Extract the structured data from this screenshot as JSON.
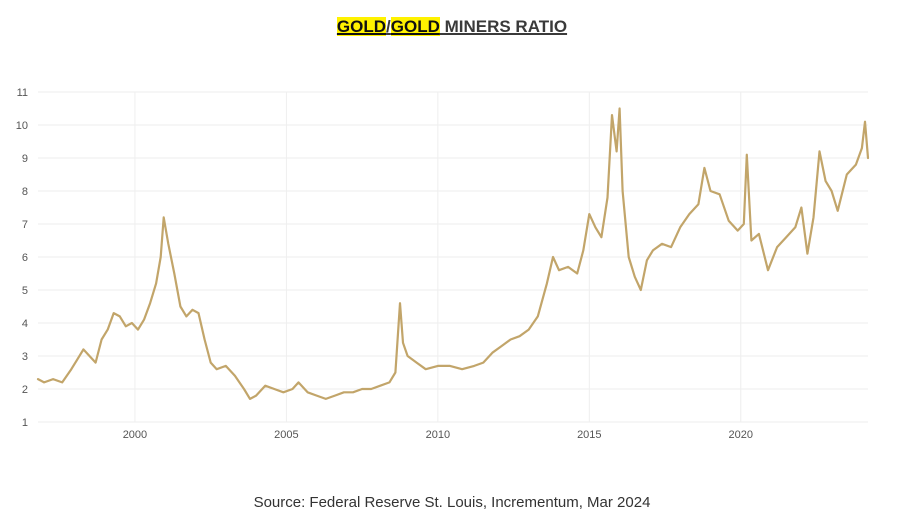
{
  "title": {
    "part1": "GOLD",
    "sep": "/",
    "part2": "GOLD",
    "rest": " MINERS RATIO"
  },
  "source": "Source: Federal Reserve St. Louis, Incrementum, Mar 2024",
  "colors": {
    "line": "#c2a56a",
    "highlight": "#fff200",
    "grid": "#eeeeee"
  },
  "chart_data": {
    "type": "line",
    "title": "GOLD/GOLD MINERS RATIO",
    "xlabel": "",
    "ylabel": "",
    "xlim": [
      1996.8,
      2024.2
    ],
    "ylim": [
      1,
      11
    ],
    "x_ticks": [
      2000,
      2005,
      2010,
      2015,
      2020
    ],
    "y_ticks": [
      1,
      2,
      3,
      4,
      5,
      6,
      7,
      8,
      9,
      10,
      11
    ],
    "grid": true,
    "legend": "none",
    "series": [
      {
        "x": [
          1996.8,
          1997.0,
          1997.3,
          1997.6,
          1997.9,
          1998.1,
          1998.3,
          1998.5,
          1998.7,
          1998.9,
          1999.1,
          1999.3,
          1999.5,
          1999.7,
          1999.9,
          2000.1,
          2000.3,
          2000.5,
          2000.7,
          2000.85,
          2000.95,
          2001.1,
          2001.3,
          2001.5,
          2001.7,
          2001.9,
          2002.1,
          2002.3,
          2002.5,
          2002.7,
          2003.0,
          2003.3,
          2003.6,
          2003.8,
          2004.0,
          2004.3,
          2004.6,
          2004.9,
          2005.2,
          2005.4,
          2005.7,
          2006.0,
          2006.3,
          2006.6,
          2006.9,
          2007.2,
          2007.5,
          2007.8,
          2008.1,
          2008.4,
          2008.6,
          2008.75,
          2008.85,
          2009.0,
          2009.3,
          2009.6,
          2010.0,
          2010.4,
          2010.8,
          2011.2,
          2011.5,
          2011.8,
          2012.1,
          2012.4,
          2012.7,
          2013.0,
          2013.3,
          2013.6,
          2013.8,
          2014.0,
          2014.3,
          2014.6,
          2014.8,
          2015.0,
          2015.2,
          2015.4,
          2015.6,
          2015.75,
          2015.9,
          2016.0,
          2016.1,
          2016.3,
          2016.5,
          2016.7,
          2016.9,
          2017.1,
          2017.4,
          2017.7,
          2018.0,
          2018.3,
          2018.6,
          2018.8,
          2019.0,
          2019.3,
          2019.6,
          2019.9,
          2020.1,
          2020.2,
          2020.35,
          2020.6,
          2020.9,
          2021.2,
          2021.5,
          2021.8,
          2022.0,
          2022.2,
          2022.4,
          2022.6,
          2022.8,
          2023.0,
          2023.2,
          2023.5,
          2023.8,
          2024.0,
          2024.1,
          2024.2
        ],
        "values": [
          2.3,
          2.2,
          2.3,
          2.2,
          2.6,
          2.9,
          3.2,
          3.0,
          2.8,
          3.5,
          3.8,
          4.3,
          4.2,
          3.9,
          4.0,
          3.8,
          4.1,
          4.6,
          5.2,
          6.0,
          7.2,
          6.4,
          5.5,
          4.5,
          4.2,
          4.4,
          4.3,
          3.5,
          2.8,
          2.6,
          2.7,
          2.4,
          2.0,
          1.7,
          1.8,
          2.1,
          2.0,
          1.9,
          2.0,
          2.2,
          1.9,
          1.8,
          1.7,
          1.8,
          1.9,
          1.9,
          2.0,
          2.0,
          2.1,
          2.2,
          2.5,
          4.6,
          3.4,
          3.0,
          2.8,
          2.6,
          2.7,
          2.7,
          2.6,
          2.7,
          2.8,
          3.1,
          3.3,
          3.5,
          3.6,
          3.8,
          4.2,
          5.2,
          6.0,
          5.6,
          5.7,
          5.5,
          6.2,
          7.3,
          6.9,
          6.6,
          7.8,
          10.3,
          9.2,
          10.5,
          8.0,
          6.0,
          5.4,
          5.0,
          5.9,
          6.2,
          6.4,
          6.3,
          6.9,
          7.3,
          7.6,
          8.7,
          8.0,
          7.9,
          7.1,
          6.8,
          7.0,
          9.1,
          6.5,
          6.7,
          5.6,
          6.3,
          6.6,
          6.9,
          7.5,
          6.1,
          7.2,
          9.2,
          8.3,
          8.0,
          7.4,
          8.5,
          8.8,
          9.3,
          10.1,
          9.0
        ]
      }
    ]
  }
}
